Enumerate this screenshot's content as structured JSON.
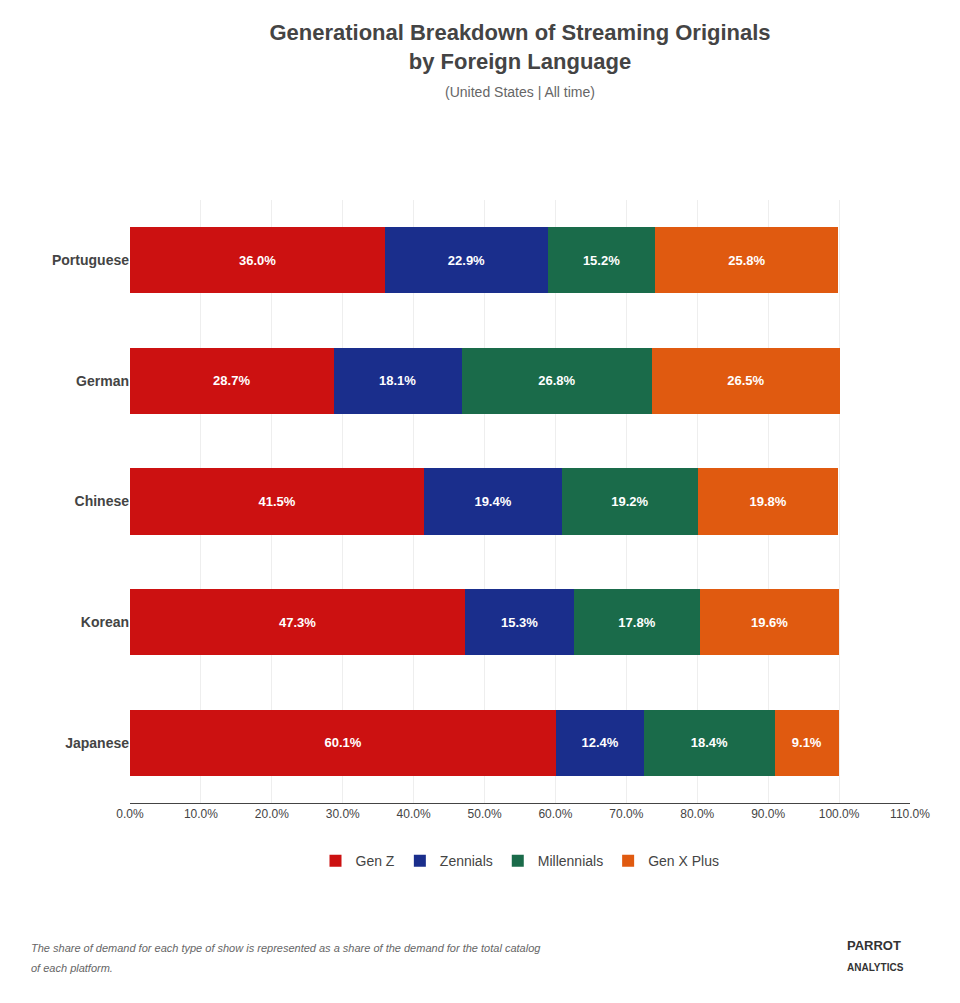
{
  "chart_data": {
    "type": "bar",
    "orientation": "horizontal",
    "stacked": true,
    "title": "Generational Breakdown of Streaming Originals\nby Foreign Language",
    "subtitle": "(United States | All time)",
    "categories": [
      "Portuguese",
      "German",
      "Chinese",
      "Korean",
      "Japanese"
    ],
    "series": [
      {
        "name": "Gen Z",
        "color": "#cc1111",
        "values": [
          36.0,
          28.7,
          41.5,
          47.3,
          60.1
        ],
        "value_labels": [
          "36.0%",
          "28.7%",
          "41.5%",
          "47.3%",
          "60.1%"
        ]
      },
      {
        "name": "Zennials",
        "color": "#1a2e8c",
        "values": [
          22.9,
          18.1,
          19.4,
          15.3,
          12.4
        ],
        "value_labels": [
          "22.9%",
          "18.1%",
          "19.4%",
          "15.3%",
          "12.4%"
        ]
      },
      {
        "name": "Millennials",
        "color": "#1a6b4a",
        "values": [
          15.2,
          26.8,
          19.2,
          17.8,
          18.4
        ],
        "value_labels": [
          "15.2%",
          "26.8%",
          "19.2%",
          "17.8%",
          "18.4%"
        ]
      },
      {
        "name": "Gen X Plus",
        "color": "#e05a10",
        "values": [
          25.8,
          26.5,
          19.8,
          19.6,
          9.1
        ],
        "value_labels": [
          "25.8%",
          "26.5%",
          "19.8%",
          "19.6%",
          "9.1%"
        ]
      }
    ],
    "data_labels": true,
    "xlim": [
      0,
      110
    ],
    "xticks": [
      {
        "value": 0,
        "label": "0.0%"
      },
      {
        "value": 10,
        "label": "10.0%"
      },
      {
        "value": 20,
        "label": "20.0%"
      },
      {
        "value": 30,
        "label": "30.0%"
      },
      {
        "value": 40,
        "label": "40.0%"
      },
      {
        "value": 50,
        "label": "50.0%"
      },
      {
        "value": 60,
        "label": "60.0%"
      },
      {
        "value": 70,
        "label": "70.0%"
      },
      {
        "value": 80,
        "label": "80.0%"
      },
      {
        "value": 90,
        "label": "90.0%"
      },
      {
        "value": 100,
        "label": "100.0%"
      },
      {
        "value": 110,
        "label": "110.0%"
      }
    ],
    "grid": true,
    "legend": "bottom",
    "annotations": [
      "The share of demand for each type of show is represented as a share of the demand for the total catalog",
      "of each platform.",
      "PARROT",
      "ANALYTICS"
    ]
  }
}
